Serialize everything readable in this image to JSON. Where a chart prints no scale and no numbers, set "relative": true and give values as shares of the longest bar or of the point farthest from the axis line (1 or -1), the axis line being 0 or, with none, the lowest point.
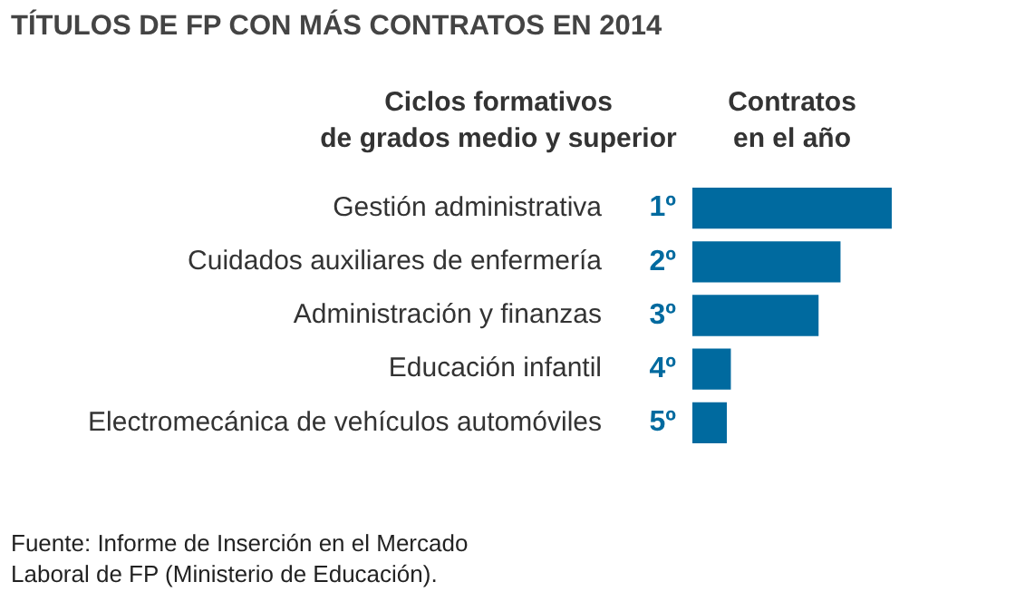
{
  "chart_data": {
    "type": "bar",
    "orientation": "horizontal",
    "relative": true,
    "title": "TÍTULOS DE FP CON MÁS CONTRATOS EN 2014",
    "ylabel": "Ciclos formativos\nde grados medio y superior",
    "xlabel": "Contratos\nen el año",
    "categories": [
      "Gestión administrativa",
      "Cuidados auxiliares de enfermería",
      "Administración y finanzas",
      "Educación infantil",
      "Electromecánica de vehículos automóviles"
    ],
    "values": [
      1,
      0.74,
      0.63,
      0.19,
      0.17
    ],
    "color": "#006a9f",
    "annotations": [
      "1º",
      "2º",
      "3º",
      "4º",
      "5º",
      "Fuente: Informe de Inserción en el Mercado\nLaboral de FP (Ministerio de Educación)."
    ]
  }
}
